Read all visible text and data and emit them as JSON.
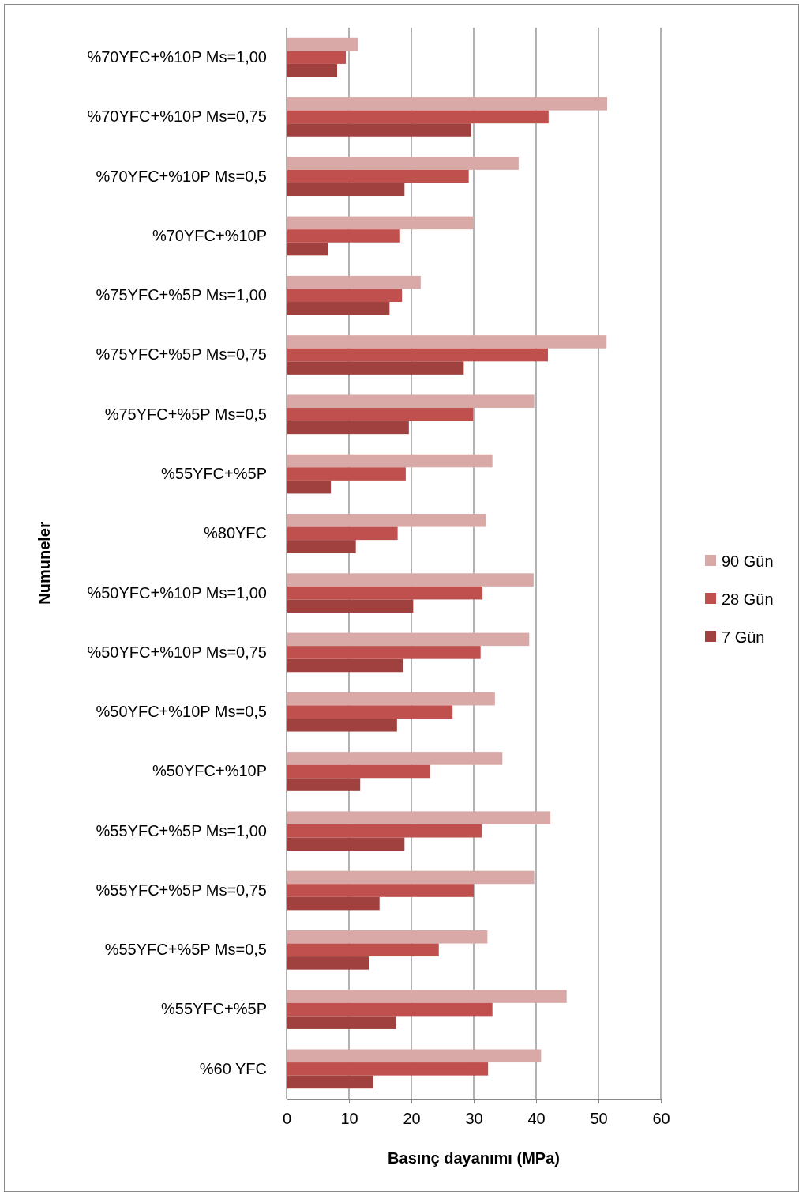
{
  "chart_data": {
    "type": "bar",
    "orientation": "horizontal",
    "xlabel": "Basınç dayanımı (MPa)",
    "ylabel": "Numuneler",
    "categories": [
      "%70YFC+%10P Ms=1,00",
      "%70YFC+%10P Ms=0,75",
      "%70YFC+%10P Ms=0,5",
      "%70YFC+%10P",
      "%75YFC+%5P Ms=1,00",
      "%75YFC+%5P Ms=0,75",
      "%75YFC+%5P Ms=0,5",
      "%55YFC+%5P",
      "%80YFC",
      "%50YFC+%10P Ms=1,00",
      "%50YFC+%10P Ms=0,75",
      "%50YFC+%10P Ms=0,5",
      "%50YFC+%10P",
      "%55YFC+%5P Ms=1,00",
      "%55YFC+%5P Ms=0,75",
      "%55YFC+%5P Ms=0,5",
      "%55YFC+%5P",
      "%60 YFC"
    ],
    "series": [
      {
        "name": "90 Gün",
        "color": "#d9a9a8",
        "values": [
          11.4,
          51.4,
          37.2,
          30.0,
          21.5,
          51.3,
          39.7,
          33.0,
          32.0,
          39.6,
          38.9,
          33.4,
          34.6,
          42.3,
          39.7,
          32.2,
          44.9,
          40.8
        ]
      },
      {
        "name": "28 Gün",
        "color": "#c0504d",
        "values": [
          9.5,
          42.0,
          29.2,
          18.2,
          18.5,
          41.9,
          29.9,
          19.1,
          17.8,
          31.4,
          31.1,
          26.6,
          23.0,
          31.3,
          30.0,
          24.4,
          33.0,
          32.3
        ]
      },
      {
        "name": "7 Gün",
        "color": "#a0413f",
        "values": [
          8.1,
          29.6,
          18.9,
          6.6,
          16.5,
          28.4,
          19.6,
          7.1,
          11.1,
          20.3,
          18.7,
          17.7,
          11.8,
          18.9,
          14.9,
          13.2,
          17.6,
          13.9
        ]
      }
    ],
    "xlim": [
      0,
      60
    ],
    "xticks": [
      0,
      10,
      20,
      30,
      40,
      50,
      60
    ],
    "grid": "x",
    "legend": "right"
  }
}
